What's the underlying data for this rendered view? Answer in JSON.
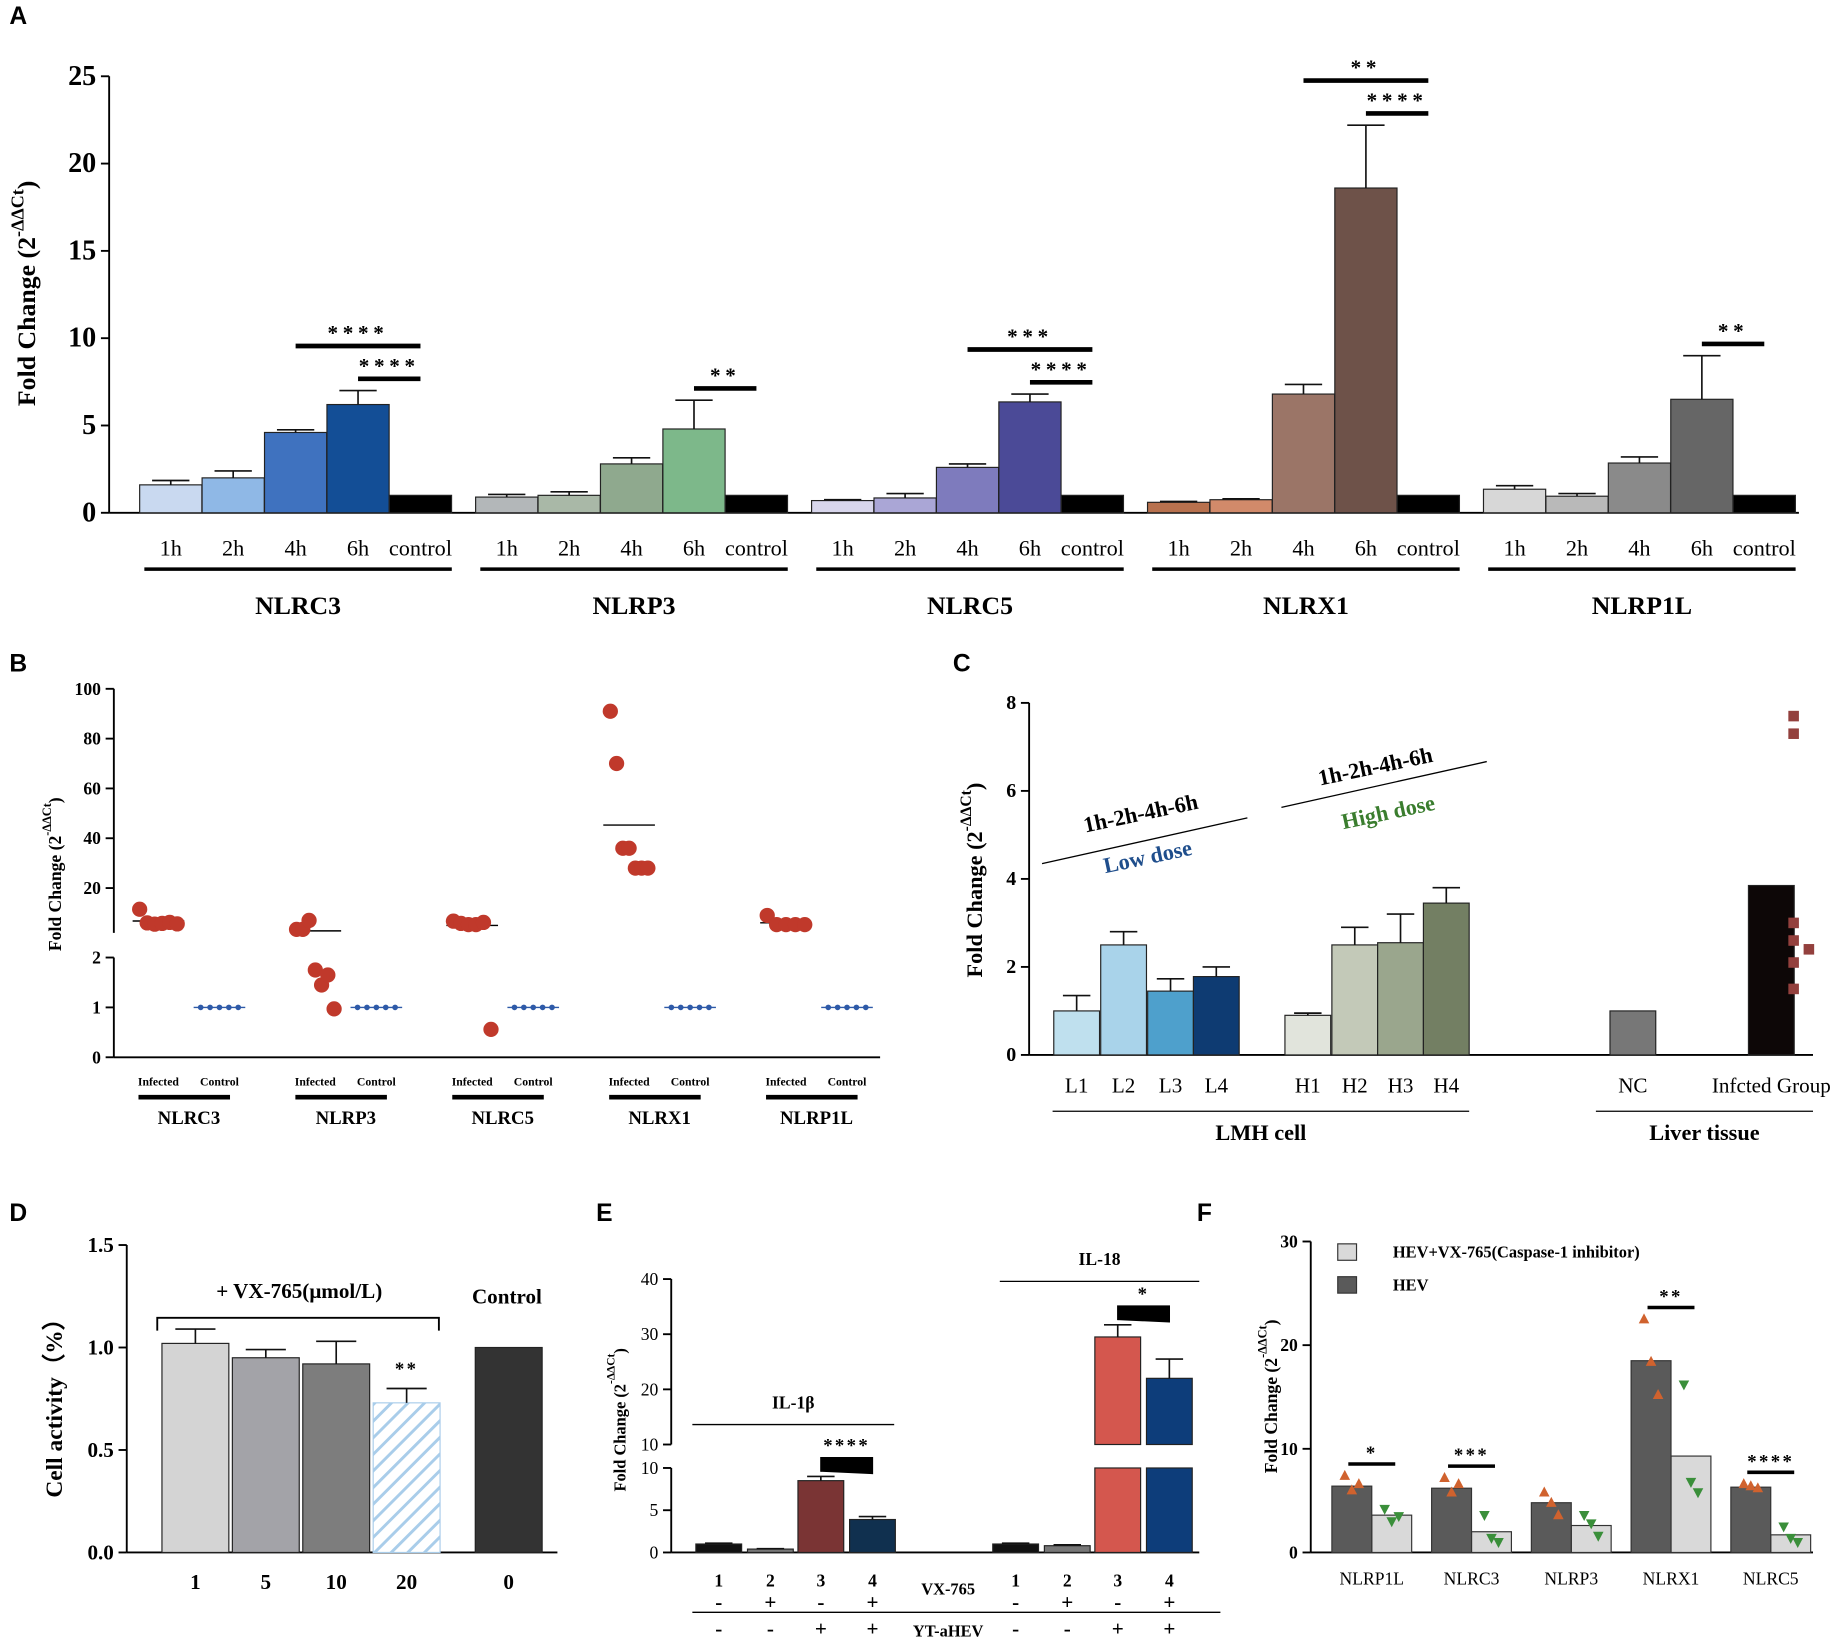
{
  "chart_data": [
    {
      "panel": "A",
      "type": "bar",
      "ylabel": [
        "Fold Change (2",
        "-ΔΔCt",
        ")"
      ],
      "ylim": [
        0,
        25
      ],
      "yticks": [
        0,
        5,
        10,
        15,
        20,
        25
      ],
      "groups": [
        {
          "name": "NLRC3",
          "categories": [
            "1h",
            "2h",
            "4h",
            "6h",
            "control"
          ],
          "values": [
            1.6,
            2.0,
            4.6,
            6.2,
            1.0
          ],
          "errors": [
            0.25,
            0.4,
            0.15,
            0.8,
            null
          ],
          "colors": [
            "#c9d9f0",
            "#8fb8e6",
            "#3f72bf",
            "#134e96",
            "#000000"
          ],
          "significance": [
            {
              "between": [
                "6h",
                "control"
              ],
              "text": "****"
            },
            {
              "between": [
                "4h",
                "control"
              ],
              "text": "****"
            }
          ]
        },
        {
          "name": "NLRP3",
          "categories": [
            "1h",
            "2h",
            "4h",
            "6h",
            "control"
          ],
          "values": [
            0.9,
            1.0,
            2.8,
            4.8,
            1.0
          ],
          "errors": [
            0.15,
            0.2,
            0.35,
            1.65,
            null
          ],
          "colors": [
            "#b3b7b9",
            "#a9b8a7",
            "#8fa98e",
            "#7db88a",
            "#000000"
          ],
          "significance": [
            {
              "between": [
                "6h",
                "control"
              ],
              "text": "**"
            }
          ]
        },
        {
          "name": "NLRC5",
          "categories": [
            "1h",
            "2h",
            "4h",
            "6h",
            "control"
          ],
          "values": [
            0.7,
            0.85,
            2.6,
            6.35,
            1.0
          ],
          "errors": [
            0.05,
            0.25,
            0.2,
            0.45,
            null
          ],
          "colors": [
            "#d8d6ec",
            "#aaa6d6",
            "#7e7bbd",
            "#4b4a97",
            "#000000"
          ],
          "significance": [
            {
              "between": [
                "6h",
                "control"
              ],
              "text": "****"
            },
            {
              "between": [
                "4h",
                "control"
              ],
              "text": "***"
            }
          ]
        },
        {
          "name": "NLRX1",
          "categories": [
            "1h",
            "2h",
            "4h",
            "6h",
            "control"
          ],
          "values": [
            0.6,
            0.75,
            6.8,
            18.6,
            1.0
          ],
          "errors": [
            0.05,
            0.05,
            0.55,
            3.6,
            null
          ],
          "colors": [
            "#b8714e",
            "#d18a6a",
            "#9b7567",
            "#6e5249",
            "#000000"
          ],
          "significance": [
            {
              "between": [
                "6h",
                "control"
              ],
              "text": "****"
            },
            {
              "between": [
                "4h",
                "control"
              ],
              "text": "**"
            }
          ]
        },
        {
          "name": "NLRP1L",
          "categories": [
            "1h",
            "2h",
            "4h",
            "6h",
            "control"
          ],
          "values": [
            1.35,
            0.95,
            2.85,
            6.5,
            1.0
          ],
          "errors": [
            0.2,
            0.15,
            0.35,
            2.5,
            null
          ],
          "colors": [
            "#d7d7d7",
            "#b9b9b9",
            "#8a8a8a",
            "#666666",
            "#000000"
          ],
          "significance": [
            {
              "between": [
                "6h",
                "control"
              ],
              "text": "**"
            }
          ]
        }
      ]
    },
    {
      "panel": "B",
      "type": "scatter",
      "ylabel": [
        "Fold Change (2",
        "-ΔΔCt",
        ")"
      ],
      "ylim": [
        [
          0,
          2
        ],
        [
          2,
          100
        ]
      ],
      "yticks": [
        [
          0,
          1,
          2
        ],
        [
          20,
          40,
          60,
          80,
          100
        ]
      ],
      "colors": [
        "#c0392b",
        "#2e5aa8"
      ],
      "groups": [
        {
          "name": "NLRC3",
          "samples": [
            {
              "name": "Infected",
              "values": [
                11.5,
                6,
                5.5,
                5.8,
                6.2,
                5.6
              ]
            },
            {
              "name": "Control",
              "values": [
                1,
                1,
                1,
                1,
                1
              ]
            }
          ]
        },
        {
          "name": "NLRP3",
          "samples": [
            {
              "name": "Infected",
              "values": [
                3.4,
                3.4,
                7.0,
                1.75,
                1.45,
                1.65,
                0.97
              ]
            },
            {
              "name": "Control",
              "values": [
                1,
                1,
                1,
                1,
                1
              ]
            }
          ]
        },
        {
          "name": "NLRC5",
          "samples": [
            {
              "name": "Infected",
              "values": [
                6.7,
                5.8,
                5.3,
                5.3,
                6.2,
                0.56
              ]
            },
            {
              "name": "Control",
              "values": [
                1,
                1,
                1,
                1,
                1
              ]
            }
          ]
        },
        {
          "name": "NLRX1",
          "samples": [
            {
              "name": "Infected",
              "values": [
                91,
                70,
                36,
                36,
                28,
                28,
                28
              ]
            },
            {
              "name": "Control",
              "values": [
                1,
                1,
                1,
                1,
                1
              ]
            }
          ]
        },
        {
          "name": "NLRP1L",
          "samples": [
            {
              "name": "Infected",
              "values": [
                9,
                5.3,
                5.3,
                5.3,
                5.3
              ]
            },
            {
              "name": "Control",
              "values": [
                1,
                1,
                1,
                1,
                1
              ]
            }
          ]
        }
      ]
    },
    {
      "panel": "C",
      "type": "bar",
      "ylabel": [
        "Fold Change (2",
        "-ΔΔCt",
        ")"
      ],
      "ylim": [
        0,
        8
      ],
      "yticks": [
        0,
        2,
        4,
        6,
        8
      ],
      "point_color": "#93403d",
      "sections": [
        {
          "name": "LMH cell",
          "groups": [
            {
              "label": "1h-2h-4h-6h",
              "dose": "Low dose",
              "dose_color": "#1f4e8c",
              "categories": [
                "L1",
                "L2",
                "L3",
                "L4"
              ],
              "values": [
                1.0,
                2.5,
                1.45,
                1.78
              ],
              "errors": [
                0.35,
                0.3,
                0.28,
                0.22
              ],
              "colors": [
                "#bfe0ee",
                "#a9d3ea",
                "#4ea0cc",
                "#0e3b72"
              ]
            },
            {
              "label": "1h-2h-4h-6h",
              "dose": "High dose",
              "dose_color": "#3a7d2e",
              "categories": [
                "H1",
                "H2",
                "H3",
                "H4"
              ],
              "values": [
                0.9,
                2.5,
                2.55,
                3.45
              ],
              "errors": [
                0.05,
                0.4,
                0.65,
                0.35
              ],
              "colors": [
                "#e1e4dc",
                "#c3c9b8",
                "#9aa68d",
                "#737f63"
              ]
            }
          ]
        },
        {
          "name": "Liver tissue",
          "groups": [
            {
              "categories": [
                "NC",
                "Infcted Group"
              ],
              "values": [
                1.0,
                3.85
              ],
              "colors": [
                "#777777",
                "#0d0707"
              ],
              "points": [
                [],
                [
                  7.7,
                  7.3,
                  3.0,
                  2.6,
                  2.4,
                  2.1,
                  1.5
                ]
              ]
            }
          ]
        }
      ]
    },
    {
      "panel": "D",
      "type": "bar",
      "ylabel": "Cell activity（%）",
      "ylim": [
        0,
        1.5
      ],
      "yticks": [
        {
          "value": 0,
          "label": "0.0"
        },
        {
          "value": 0.5,
          "label": "0.5"
        },
        {
          "value": 1,
          "label": "1.0"
        },
        {
          "value": 1.5,
          "label": "1.5"
        }
      ],
      "bracket_label": "+ VX-765(μmol/L)",
      "control_label": "Control",
      "categories": [
        "1",
        "5",
        "10",
        "20",
        "0"
      ],
      "values": [
        1.02,
        0.95,
        0.92,
        0.73,
        1.0
      ],
      "errors": [
        0.07,
        0.04,
        0.11,
        0.07,
        null
      ],
      "colors": [
        "#d4d4d4",
        "#a3a3a8",
        "#7d7d7d",
        "#a9cdea",
        "#333333"
      ],
      "hatched": [
        false,
        false,
        false,
        true,
        false
      ],
      "significance": [
        {
          "category": "20",
          "text": "**"
        }
      ]
    },
    {
      "panel": "E",
      "type": "bar",
      "ylabel": [
        "Fold Change (2",
        "-ΔΔCt",
        ")"
      ],
      "ylim": [
        [
          0,
          10
        ],
        [
          10,
          40
        ]
      ],
      "yticks": [
        [
          0,
          5,
          10
        ],
        [
          10,
          20,
          30,
          40
        ]
      ],
      "groups": [
        {
          "name": "IL-1β",
          "categories": [
            "1",
            "2",
            "3",
            "4"
          ],
          "values": [
            1.0,
            0.4,
            8.5,
            3.9
          ],
          "errors": [
            0.1,
            0.05,
            0.5,
            0.35
          ],
          "colors": [
            "#111111",
            "#777777",
            "#7a3434",
            "#10304f"
          ],
          "significance": [
            {
              "between": [
                "3",
                "4"
              ],
              "text": "****"
            }
          ]
        },
        {
          "name": "IL-18",
          "categories": [
            "1",
            "2",
            "3",
            "4"
          ],
          "values": [
            1.0,
            0.8,
            29.5,
            22
          ],
          "errors": [
            0.1,
            0.1,
            2.2,
            3.5
          ],
          "colors": [
            "#111111",
            "#777777",
            "#d4574e",
            "#0d3d7a"
          ],
          "significance": [
            {
              "between": [
                "3",
                "4"
              ],
              "text": "*"
            }
          ]
        }
      ],
      "treatments": [
        {
          "name": "VX-765",
          "signs": [
            "-",
            "+",
            "-",
            "+",
            "-",
            "+",
            "-",
            "+"
          ]
        },
        {
          "name": "YT-aHEV",
          "signs": [
            "-",
            "-",
            "+",
            "+",
            "-",
            "-",
            "+",
            "+"
          ]
        }
      ]
    },
    {
      "panel": "F",
      "type": "bar",
      "ylabel": [
        "Fold Change (2",
        "-ΔΔCt",
        ")"
      ],
      "ylim": [
        0,
        30
      ],
      "yticks": [
        0,
        10,
        20,
        30
      ],
      "categories": [
        "NLRP1L",
        "NLRC3",
        "NLRP3",
        "NLRX1",
        "NLRC5"
      ],
      "series": [
        {
          "name": "HEV+VX-765(Caspase-1 inhibitor)",
          "color": "#d9d9d9",
          "values": [
            3.6,
            2.0,
            2.6,
            9.3,
            1.7
          ],
          "points": [
            [
              4.2,
              3.0,
              3.5
            ],
            [
              3.6,
              1.4,
              1.0
            ],
            [
              3.6,
              2.8,
              1.6
            ],
            [
              16.2,
              6.8,
              5.8
            ],
            [
              2.5,
              1.4,
              1.0
            ]
          ],
          "point_color": "#3a8f3a",
          "marker": "triangle-down"
        },
        {
          "name": "HEV",
          "color": "#5a5a5a",
          "values": [
            6.4,
            6.2,
            4.8,
            18.5,
            6.3
          ],
          "points": [
            [
              7.4,
              6.0,
              6.6
            ],
            [
              7.2,
              5.8,
              6.6
            ],
            [
              5.8,
              4.8,
              3.6
            ],
            [
              22.5,
              18.4,
              15.2
            ],
            [
              6.6,
              6.4,
              6.2
            ]
          ],
          "point_color": "#d0622e",
          "marker": "triangle-up"
        }
      ],
      "significance": [
        {
          "category": "NLRP1L",
          "text": "*"
        },
        {
          "category": "NLRC3",
          "text": "***"
        },
        {
          "category": "NLRX1",
          "text": "**"
        },
        {
          "category": "NLRC5",
          "text": "****"
        }
      ]
    }
  ]
}
